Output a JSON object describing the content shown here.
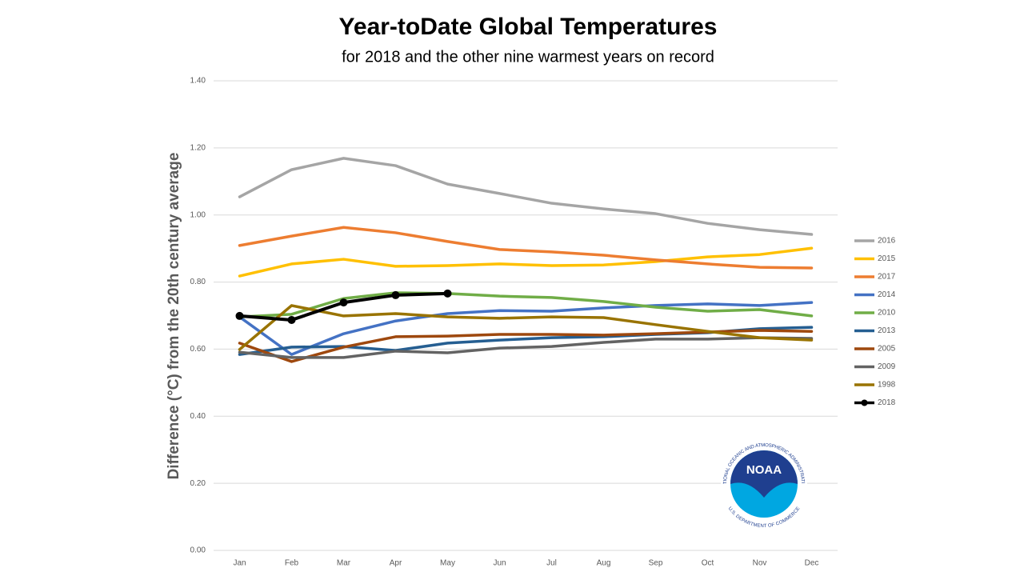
{
  "chart_data": {
    "type": "line",
    "title": "Year-toDate Global Temperatures",
    "subtitle": "for 2018 and the other nine warmest years on record",
    "y_label": "Difference (°C) from the 20th century average",
    "categories": [
      "Jan",
      "Feb",
      "Mar",
      "Apr",
      "May",
      "Jun",
      "Jul",
      "Aug",
      "Sep",
      "Oct",
      "Nov",
      "Dec"
    ],
    "ylim": [
      0,
      1.4
    ],
    "yticks": [
      {
        "value": 0,
        "label": "0.00"
      },
      {
        "value": 0.2,
        "label": "0.20"
      },
      {
        "value": 0.4,
        "label": "0.40"
      },
      {
        "value": 0.6,
        "label": "0.60"
      },
      {
        "value": 0.8,
        "label": "0.80"
      },
      {
        "value": 1.0,
        "label": "1.00"
      },
      {
        "value": 1.2,
        "label": "1.20"
      },
      {
        "value": 1.4,
        "label": "1.40"
      }
    ],
    "grid": true,
    "legend": "right",
    "series": [
      {
        "name": "2016",
        "color": "#a5a5a5",
        "values": [
          1.054,
          1.135,
          1.169,
          1.147,
          1.092,
          1.064,
          1.035,
          1.018,
          1.004,
          0.975,
          0.956,
          0.942
        ]
      },
      {
        "name": "2015",
        "color": "#ffc000",
        "values": [
          0.818,
          0.854,
          0.868,
          0.847,
          0.849,
          0.854,
          0.849,
          0.851,
          0.861,
          0.875,
          0.882,
          0.901
        ]
      },
      {
        "name": "2017",
        "color": "#ed7d31",
        "values": [
          0.909,
          0.937,
          0.963,
          0.947,
          0.921,
          0.897,
          0.89,
          0.88,
          0.866,
          0.854,
          0.844,
          0.842
        ]
      },
      {
        "name": "2014",
        "color": "#4472c4",
        "values": [
          0.696,
          0.584,
          0.646,
          0.684,
          0.706,
          0.715,
          0.713,
          0.723,
          0.73,
          0.735,
          0.73,
          0.739
        ]
      },
      {
        "name": "2010",
        "color": "#70ad47",
        "values": [
          0.696,
          0.704,
          0.751,
          0.768,
          0.766,
          0.758,
          0.754,
          0.742,
          0.725,
          0.713,
          0.718,
          0.699
        ]
      },
      {
        "name": "2013",
        "color": "#255e91",
        "values": [
          0.584,
          0.606,
          0.608,
          0.596,
          0.618,
          0.627,
          0.634,
          0.637,
          0.644,
          0.649,
          0.661,
          0.665
        ]
      },
      {
        "name": "2005",
        "color": "#9e480e",
        "values": [
          0.618,
          0.563,
          0.606,
          0.637,
          0.639,
          0.644,
          0.644,
          0.642,
          0.646,
          0.651,
          0.656,
          0.653
        ]
      },
      {
        "name": "2009",
        "color": "#636363",
        "values": [
          0.591,
          0.575,
          0.575,
          0.594,
          0.589,
          0.603,
          0.608,
          0.62,
          0.63,
          0.63,
          0.634,
          0.632
        ]
      },
      {
        "name": "1998",
        "color": "#997300",
        "values": [
          0.599,
          0.73,
          0.699,
          0.706,
          0.696,
          0.692,
          0.696,
          0.694,
          0.673,
          0.653,
          0.634,
          0.627
        ]
      },
      {
        "name": "2018",
        "color": "#000000",
        "markers": true,
        "values": [
          0.699,
          0.687,
          0.739,
          0.761,
          0.766,
          null,
          null,
          null,
          null,
          null,
          null,
          null
        ]
      }
    ]
  },
  "logo": {
    "text": "NOAA",
    "ring_top": "NATIONAL OCEANIC AND ATMOSPHERIC ADMINISTRATION",
    "ring_bottom": "U.S. DEPARTMENT OF COMMERCE"
  }
}
